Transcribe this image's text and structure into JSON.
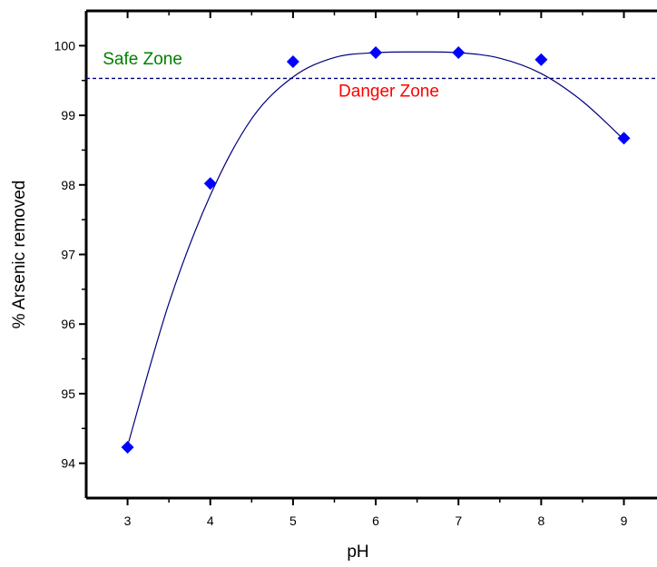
{
  "chart_data": {
    "type": "scatter",
    "title": "",
    "xlabel": "pH",
    "ylabel": "% Arsenic removed",
    "xlim": [
      2.5,
      9.4
    ],
    "ylim": [
      93.5,
      100.5
    ],
    "xticks": [
      3,
      4,
      5,
      6,
      7,
      8,
      9
    ],
    "xtick_labels": [
      "3",
      "4",
      "5",
      "6",
      "7",
      "8",
      "9"
    ],
    "yticks": [
      94,
      95,
      96,
      97,
      98,
      99,
      100
    ],
    "ytick_labels": [
      "94",
      "95",
      "96",
      "97",
      "98",
      "99",
      "100"
    ],
    "grid": false,
    "series": [
      {
        "marker": "diamond",
        "color": "#0000ff",
        "x": [
          3,
          4,
          5,
          6,
          7,
          8,
          9
        ],
        "y": [
          94.23,
          98.02,
          99.77,
          99.9,
          99.9,
          99.8,
          98.67
        ]
      }
    ],
    "fit_curve": {
      "style": "smooth",
      "color": "#00007f",
      "x": [
        3,
        3.5,
        4,
        4.5,
        5,
        5.5,
        6,
        6.5,
        7,
        7.5,
        8,
        8.5,
        9
      ],
      "y": [
        94.25,
        96.3,
        97.85,
        98.95,
        99.55,
        99.83,
        99.9,
        99.91,
        99.9,
        99.82,
        99.6,
        99.2,
        98.65
      ]
    },
    "reference_line": {
      "y": 99.53,
      "style": "dashed",
      "color": "#00007f"
    },
    "annotations": [
      {
        "text": "Safe Zone",
        "x": 2.7,
        "y": 99.73,
        "color": "#008000"
      },
      {
        "text": "Danger Zone",
        "x": 5.55,
        "y": 99.27,
        "color": "#ff0000"
      }
    ]
  }
}
